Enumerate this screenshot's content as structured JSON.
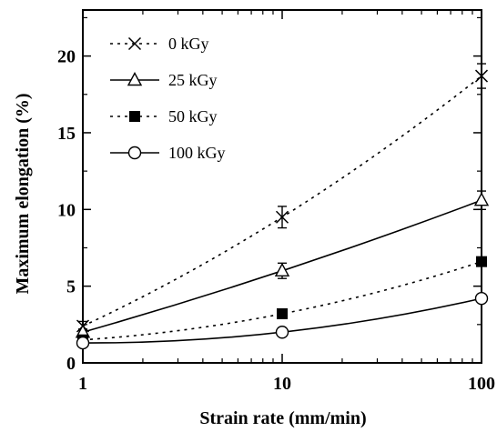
{
  "chart_data": {
    "type": "line",
    "title": "",
    "xlabel": "Strain rate (mm/min)",
    "ylabel": "Maximum elongation (%)",
    "xscale": "log",
    "xlim": [
      1,
      100
    ],
    "ylim": [
      0,
      23
    ],
    "x_ticks": [
      1,
      10,
      100
    ],
    "x_tick_labels": [
      "1",
      "10",
      "100"
    ],
    "y_ticks": [
      0,
      5,
      10,
      15,
      20
    ],
    "y_tick_labels": [
      "0",
      "5",
      "10",
      "15",
      "20"
    ],
    "grid": false,
    "legend_position": "top-left",
    "series": [
      {
        "name": "0 kGy",
        "marker": "x",
        "line": "dotted",
        "x": [
          1,
          10,
          100
        ],
        "y": [
          2.4,
          9.5,
          18.7
        ],
        "err": [
          0.3,
          0.7,
          0.8
        ]
      },
      {
        "name": "25 kGy",
        "marker": "open-triangle",
        "line": "solid",
        "x": [
          1,
          10,
          100
        ],
        "y": [
          2.0,
          6.0,
          10.6
        ],
        "err": [
          0.2,
          0.5,
          0.6
        ]
      },
      {
        "name": "50 kGy",
        "marker": "filled-square",
        "line": "dotted",
        "x": [
          1,
          10,
          100
        ],
        "y": [
          1.5,
          3.2,
          6.6
        ],
        "err": [
          0,
          0,
          0
        ]
      },
      {
        "name": "100 kGy",
        "marker": "open-circle",
        "line": "solid",
        "x": [
          1,
          10,
          100
        ],
        "y": [
          1.3,
          2.0,
          4.2
        ],
        "err": [
          0,
          0,
          0
        ]
      }
    ]
  }
}
